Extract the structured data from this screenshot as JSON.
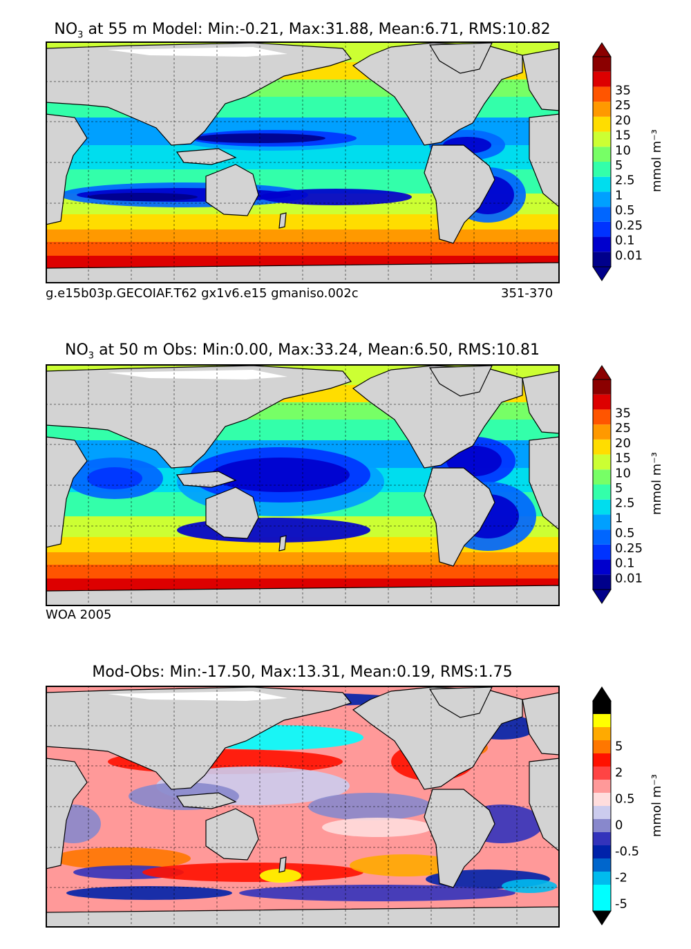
{
  "panels": [
    {
      "id": "model",
      "title_var": "NO",
      "title_sub": "3",
      "title_rest": " at 55 m Model: Min:-0.21, Max:31.88, Mean:6.71, RMS:10.82",
      "footer_left": "g.e15b03p.GECOIAF.T62 gx1v6.e15 gmaniso.002c",
      "footer_right": "351-370",
      "colorbar": {
        "label": "mmol m⁻³",
        "ticks": [
          "0.01",
          "0.1",
          "0.25",
          "0.5",
          "1",
          "2.5",
          "5",
          "10",
          "15",
          "20",
          "25",
          "35"
        ],
        "colors": [
          "#00008b",
          "#0000cd",
          "#0033ff",
          "#0066ff",
          "#00a0ff",
          "#00ddee",
          "#33ffaa",
          "#77ff66",
          "#ccff33",
          "#ffdd00",
          "#ff9900",
          "#ff5500",
          "#dd0000",
          "#8b0000"
        ]
      }
    },
    {
      "id": "obs",
      "title_var": "NO",
      "title_sub": "3",
      "title_rest": " at 50 m Obs: Min:0.00, Max:33.24, Mean:6.50, RMS:10.81",
      "footer_left": "WOA 2005",
      "colorbar": {
        "label": "mmol m⁻³",
        "ticks": [
          "0.01",
          "0.1",
          "0.25",
          "0.5",
          "1",
          "2.5",
          "5",
          "10",
          "15",
          "20",
          "25",
          "35"
        ],
        "colors": [
          "#00008b",
          "#0000cd",
          "#0033ff",
          "#0066ff",
          "#00a0ff",
          "#00ddee",
          "#33ffaa",
          "#77ff66",
          "#ccff33",
          "#ffdd00",
          "#ff9900",
          "#ff5500",
          "#dd0000",
          "#8b0000"
        ]
      }
    },
    {
      "id": "diff",
      "title_text": "Mod-Obs: Min:-17.50, Max:13.31, Mean:0.19, RMS:1.75",
      "colorbar": {
        "label": "mmol m⁻³",
        "ticks": [
          "-5",
          "",
          "-2",
          "",
          "-0.5",
          "",
          "0",
          "",
          "0.5",
          "",
          "2",
          "",
          "5"
        ],
        "colors": [
          "#00ffff",
          "#00ffff",
          "#00bbee",
          "#0066cc",
          "#0022aa",
          "#3333bb",
          "#8888cc",
          "#ccccee",
          "#ffdddd",
          "#ff9999",
          "#ff4444",
          "#ff1100",
          "#ff7700",
          "#ffaa00",
          "#ffff00",
          "#000000"
        ]
      }
    }
  ],
  "chart_data": [
    {
      "type": "heatmap",
      "title": "NO3 at 55 m Model: Min:-0.21, Max:31.88, Mean:6.71, RMS:10.82",
      "variable": "NO3",
      "depth_m": 55,
      "source": "Model",
      "stats": {
        "min": -0.21,
        "max": 31.88,
        "mean": 6.71,
        "rms": 10.82
      },
      "units": "mmol m-3",
      "levels": [
        0.01,
        0.1,
        0.25,
        0.5,
        1,
        2.5,
        5,
        10,
        15,
        20,
        25,
        35
      ],
      "footer": [
        "g.e15b03p.GECOIAF.T62 gx1v6.e15 gmaniso.002c",
        "351-370"
      ]
    },
    {
      "type": "heatmap",
      "title": "NO3 at 50 m Obs: Min:0.00, Max:33.24, Mean:6.50, RMS:10.81",
      "variable": "NO3",
      "depth_m": 50,
      "source": "Obs",
      "stats": {
        "min": 0.0,
        "max": 33.24,
        "mean": 6.5,
        "rms": 10.81
      },
      "units": "mmol m-3",
      "levels": [
        0.01,
        0.1,
        0.25,
        0.5,
        1,
        2.5,
        5,
        10,
        15,
        20,
        25,
        35
      ],
      "footer": [
        "WOA 2005"
      ]
    },
    {
      "type": "heatmap",
      "title": "Mod-Obs: Min:-17.50, Max:13.31, Mean:0.19, RMS:1.75",
      "stats": {
        "min": -17.5,
        "max": 13.31,
        "mean": 0.19,
        "rms": 1.75
      },
      "units": "mmol m-3",
      "levels": [
        -5,
        -2,
        -0.5,
        0,
        0.5,
        2,
        5
      ]
    }
  ]
}
